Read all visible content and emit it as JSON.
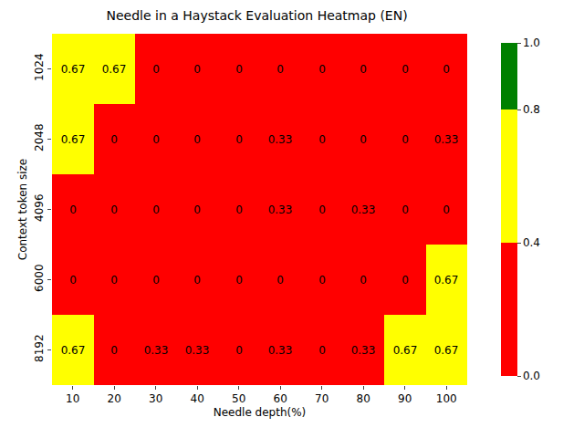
{
  "chart_data": {
    "type": "heatmap",
    "title": "Needle in a Haystack Evaluation Heatmap (EN)",
    "x_label": "Needle depth(%)",
    "y_label": "Context token size",
    "x": [
      "10",
      "20",
      "30",
      "40",
      "50",
      "60",
      "70",
      "80",
      "90",
      "100"
    ],
    "y": [
      "1024",
      "2048",
      "4096",
      "6000",
      "8192"
    ],
    "cells": [
      [
        0.67,
        0.67,
        0,
        0,
        0,
        0,
        0,
        0,
        0,
        0
      ],
      [
        0.67,
        0,
        0,
        0,
        0,
        0.33,
        0,
        0,
        0,
        0.33
      ],
      [
        0,
        0,
        0,
        0,
        0,
        0.33,
        0,
        0.33,
        0,
        0
      ],
      [
        0,
        0,
        0,
        0,
        0,
        0,
        0,
        0,
        0,
        0.67
      ],
      [
        0.67,
        0,
        0.33,
        0.33,
        0,
        0.33,
        0,
        0.33,
        0.67,
        0.67
      ]
    ],
    "data_labels": true,
    "colorbar": {
      "range": [
        0,
        1
      ],
      "ticks": [
        {
          "value": 0,
          "label": "0.0"
        },
        0.4,
        0.8,
        {
          "value": 1,
          "label": "1.0"
        }
      ],
      "colors": [
        "red",
        "yellow",
        "green"
      ]
    }
  }
}
